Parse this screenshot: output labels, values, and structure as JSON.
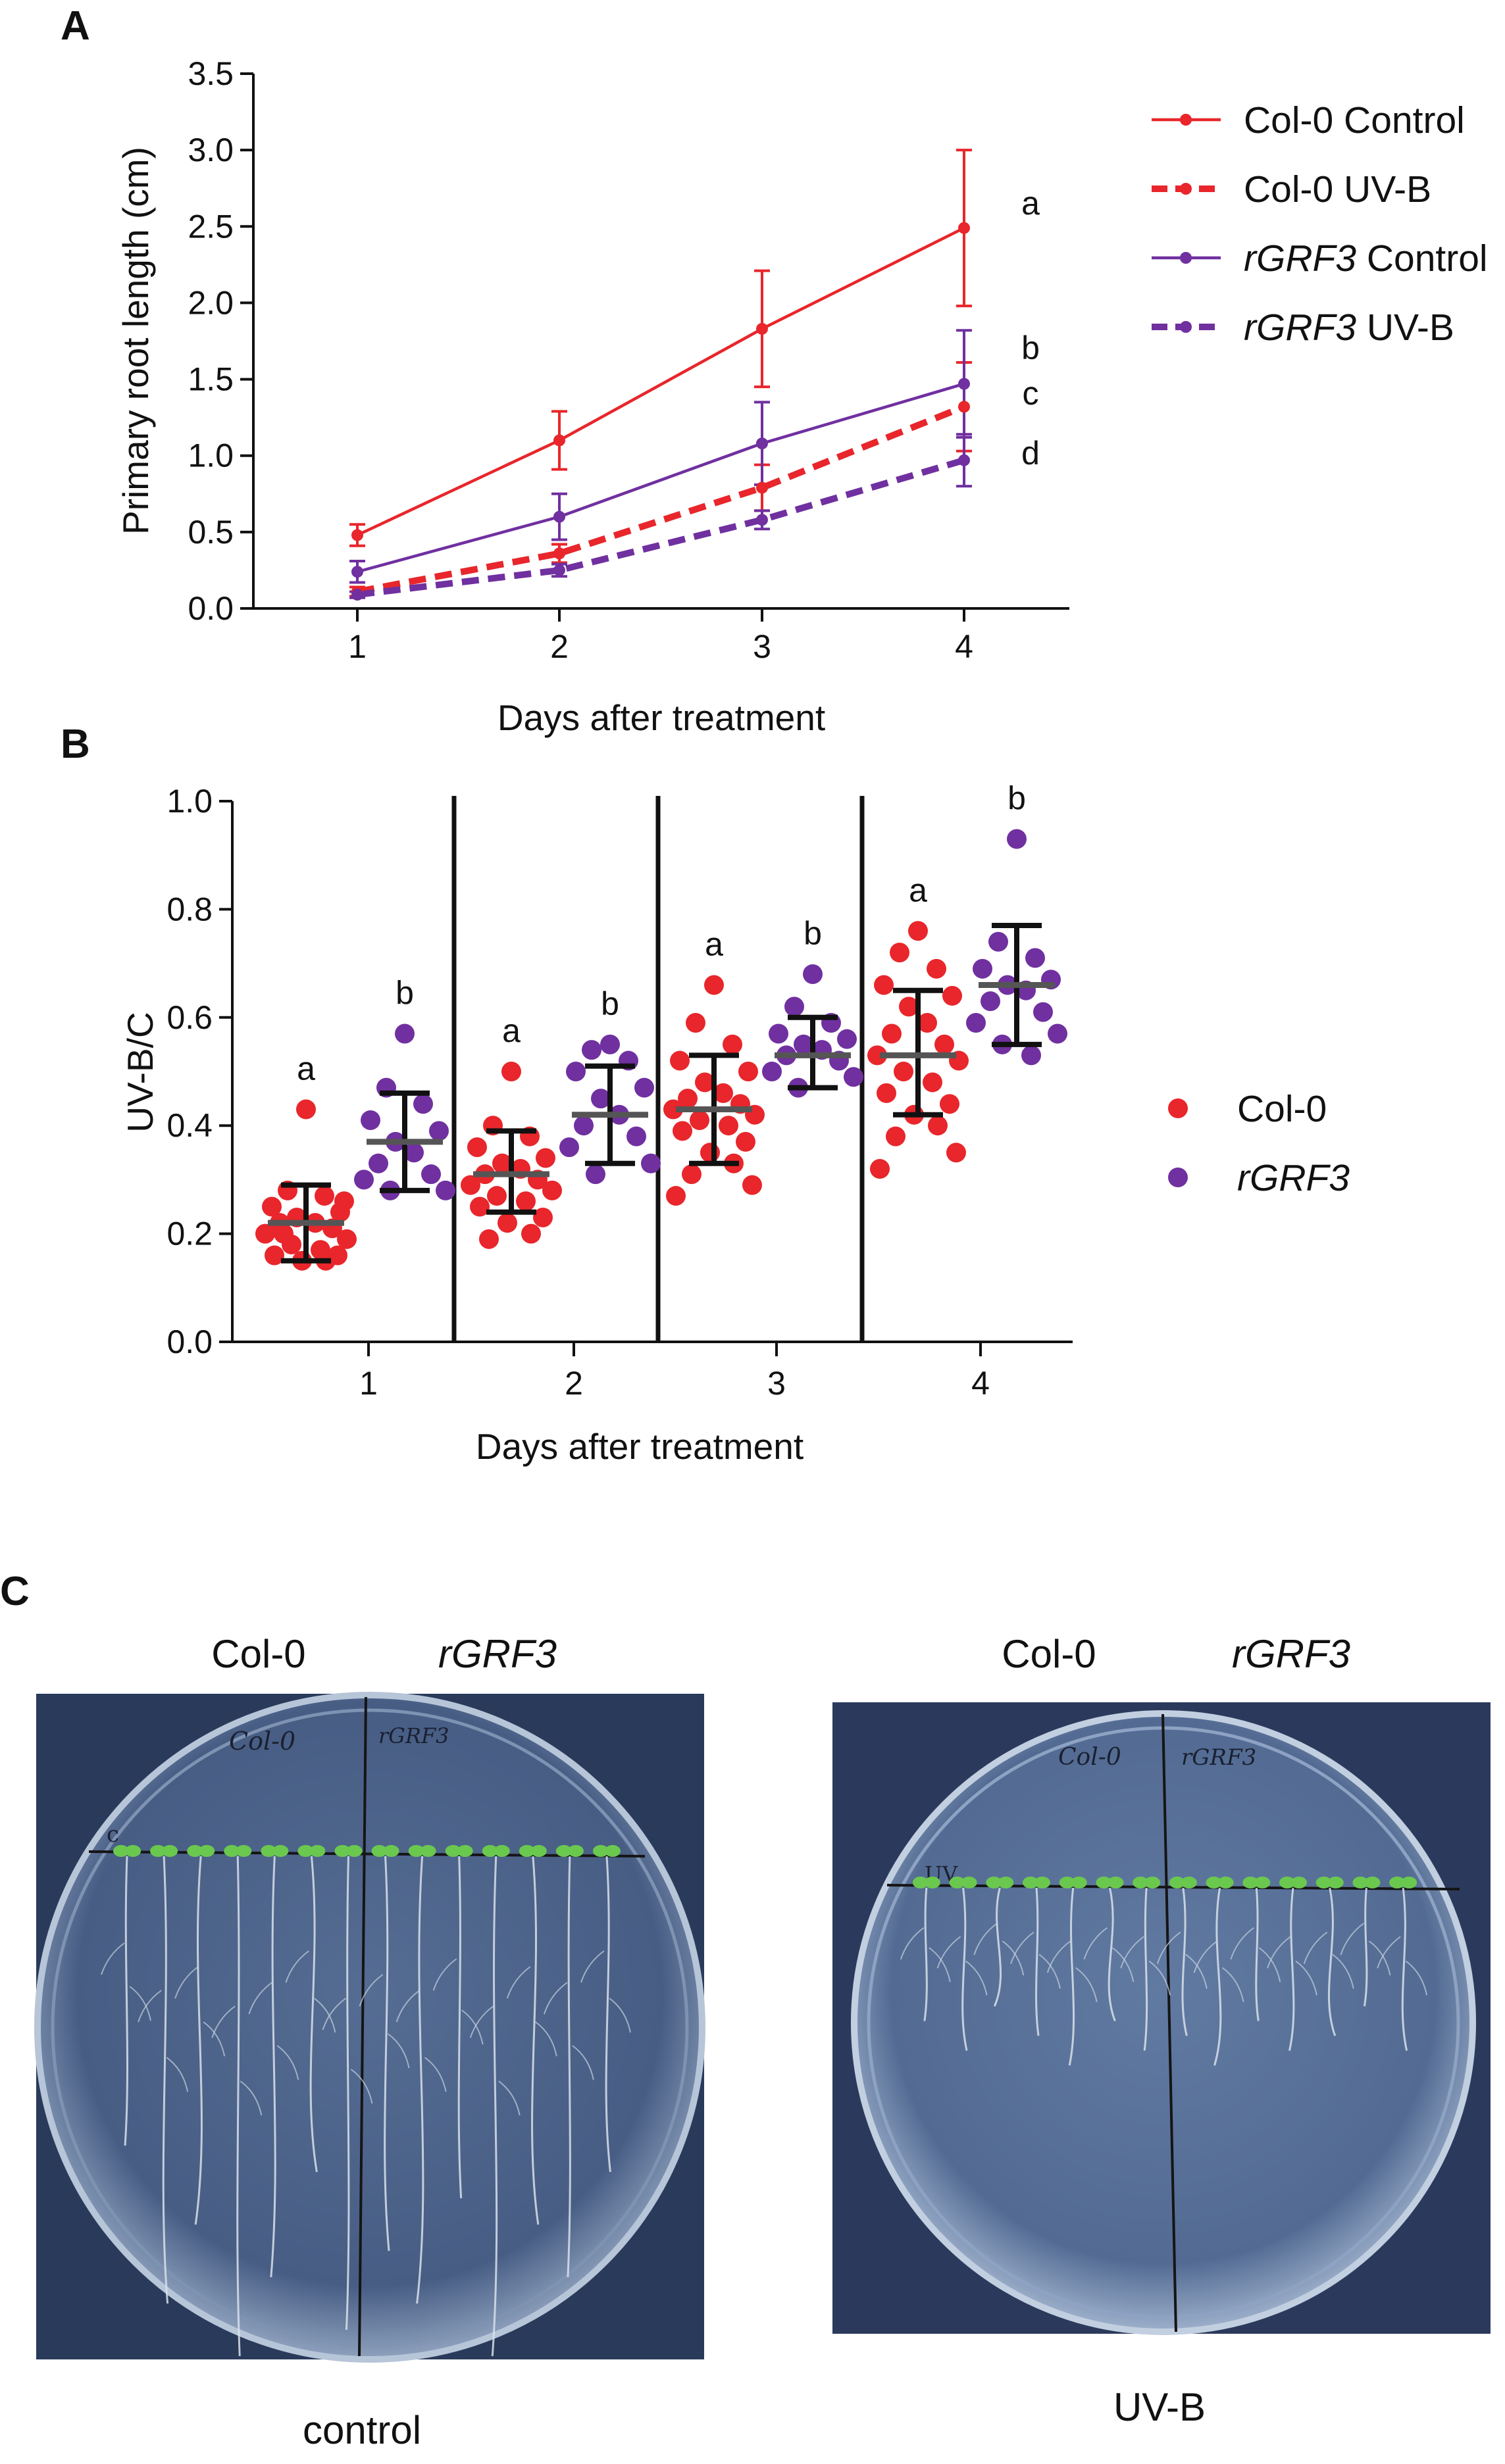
{
  "panels": {
    "a": {
      "label": "A"
    },
    "b": {
      "label": "B"
    },
    "c": {
      "label": "C"
    }
  },
  "chart_data": [
    {
      "type": "line",
      "panel": "A",
      "xlabel": "Days after treatment",
      "ylabel": "Primary root length (cm)",
      "x": [
        1,
        2,
        3,
        4
      ],
      "xticks": [
        "1",
        "2",
        "3",
        "4"
      ],
      "ylim": [
        0,
        3.5
      ],
      "yticks": [
        "0.0",
        "0.5",
        "1.0",
        "1.5",
        "2.0",
        "2.5",
        "3.0",
        "3.5"
      ],
      "series": [
        {
          "name": "Col-0 Control",
          "name_main": "Col-0",
          "name_suffix": "Control",
          "italic_main": false,
          "color": "#e8262b",
          "dashed": false,
          "values": [
            0.48,
            1.1,
            1.83,
            2.49
          ],
          "errors": [
            0.07,
            0.19,
            0.38,
            0.51
          ]
        },
        {
          "name": "Col-0 UV-B",
          "name_main": "Col-0",
          "name_suffix": "UV-B",
          "italic_main": false,
          "color": "#e8262b",
          "dashed": true,
          "values": [
            0.11,
            0.36,
            0.79,
            1.32
          ],
          "errors": [
            0.03,
            0.06,
            0.15,
            0.29
          ]
        },
        {
          "name": "rGRF3 Control",
          "name_main": "rGRF3",
          "name_suffix": "Control",
          "italic_main": true,
          "color": "#7030a0",
          "dashed": false,
          "values": [
            0.24,
            0.6,
            1.08,
            1.47
          ],
          "errors": [
            0.07,
            0.15,
            0.27,
            0.35
          ]
        },
        {
          "name": "rGRF3 UV-B",
          "name_main": "rGRF3",
          "name_suffix": "UV-B",
          "italic_main": true,
          "color": "#7030a0",
          "dashed": true,
          "values": [
            0.09,
            0.25,
            0.58,
            0.97
          ],
          "errors": [
            0.02,
            0.04,
            0.06,
            0.17
          ]
        }
      ],
      "significance_letters": [
        {
          "series": "Col-0 Control",
          "letter": "a"
        },
        {
          "series": "rGRF3 Control",
          "letter": "b"
        },
        {
          "series": "Col-0 UV-B",
          "letter": "c"
        },
        {
          "series": "rGRF3 UV-B",
          "letter": "d"
        }
      ]
    },
    {
      "type": "scatter",
      "panel": "B",
      "xlabel": "Days after treatment",
      "ylabel": "UV-B/C",
      "categories": [
        "1",
        "2",
        "3",
        "4"
      ],
      "ylim": [
        0,
        1.0
      ],
      "yticks": [
        "0.0",
        "0.2",
        "0.4",
        "0.6",
        "0.8",
        "1.0"
      ],
      "groups": [
        {
          "name": "Col-0",
          "italic": false,
          "color": "#e8262b"
        },
        {
          "name": "rGRF3",
          "italic": true,
          "color": "#7030a0"
        }
      ],
      "series": [
        {
          "day": "1",
          "group": "Col-0",
          "mean": 0.22,
          "sd_low": 0.15,
          "sd_high": 0.29,
          "letter": "a",
          "points": [
            0.43,
            0.28,
            0.27,
            0.25,
            0.24,
            0.23,
            0.22,
            0.22,
            0.21,
            0.2,
            0.19,
            0.18,
            0.17,
            0.16,
            0.16,
            0.15,
            0.15,
            0.2,
            0.26
          ]
        },
        {
          "day": "1",
          "group": "rGRF3",
          "mean": 0.37,
          "sd_low": 0.28,
          "sd_high": 0.46,
          "letter": "b",
          "points": [
            0.57,
            0.47,
            0.44,
            0.41,
            0.39,
            0.37,
            0.35,
            0.33,
            0.31,
            0.3,
            0.28,
            0.28
          ]
        },
        {
          "day": "2",
          "group": "Col-0",
          "mean": 0.31,
          "sd_low": 0.24,
          "sd_high": 0.39,
          "letter": "a",
          "points": [
            0.5,
            0.4,
            0.38,
            0.36,
            0.34,
            0.33,
            0.32,
            0.31,
            0.3,
            0.29,
            0.28,
            0.27,
            0.26,
            0.25,
            0.23,
            0.22,
            0.2,
            0.19
          ]
        },
        {
          "day": "2",
          "group": "rGRF3",
          "mean": 0.42,
          "sd_low": 0.33,
          "sd_high": 0.51,
          "letter": "b",
          "points": [
            0.55,
            0.54,
            0.52,
            0.5,
            0.47,
            0.45,
            0.42,
            0.4,
            0.38,
            0.36,
            0.33,
            0.31
          ]
        },
        {
          "day": "3",
          "group": "Col-0",
          "mean": 0.43,
          "sd_low": 0.33,
          "sd_high": 0.53,
          "letter": "a",
          "points": [
            0.66,
            0.59,
            0.55,
            0.52,
            0.5,
            0.48,
            0.46,
            0.45,
            0.44,
            0.43,
            0.42,
            0.41,
            0.4,
            0.39,
            0.37,
            0.35,
            0.33,
            0.31,
            0.29,
            0.27
          ]
        },
        {
          "day": "3",
          "group": "rGRF3",
          "mean": 0.53,
          "sd_low": 0.47,
          "sd_high": 0.6,
          "letter": "b",
          "points": [
            0.68,
            0.62,
            0.59,
            0.57,
            0.56,
            0.55,
            0.54,
            0.53,
            0.52,
            0.5,
            0.49,
            0.47
          ]
        },
        {
          "day": "4",
          "group": "Col-0",
          "mean": 0.53,
          "sd_low": 0.42,
          "sd_high": 0.65,
          "letter": "a",
          "points": [
            0.76,
            0.72,
            0.69,
            0.66,
            0.64,
            0.62,
            0.59,
            0.57,
            0.55,
            0.53,
            0.52,
            0.5,
            0.48,
            0.46,
            0.44,
            0.42,
            0.4,
            0.38,
            0.35,
            0.32
          ]
        },
        {
          "day": "4",
          "group": "rGRF3",
          "mean": 0.66,
          "sd_low": 0.55,
          "sd_high": 0.77,
          "letter": "b",
          "points": [
            0.93,
            0.74,
            0.71,
            0.69,
            0.67,
            0.66,
            0.65,
            0.63,
            0.61,
            0.59,
            0.57,
            0.55,
            0.53
          ]
        }
      ]
    }
  ],
  "photos": {
    "left": {
      "col_labels": [
        "Col-0",
        "rGRF3"
      ],
      "col_italic": [
        false,
        true
      ],
      "plate_writing": [
        "Col-0",
        "rGRF3",
        "c"
      ],
      "caption": "control",
      "root_lengths": [
        0.55,
        0.85,
        0.7,
        0.95,
        0.8,
        0.6,
        0.9,
        0.75,
        0.85,
        0.65,
        0.95,
        0.7,
        0.8,
        0.6
      ],
      "colors": {
        "background": "#2a3a5a",
        "plate": "#5f7597",
        "agar": "#4c6289",
        "leaf": "#6bc84f"
      }
    },
    "right": {
      "col_labels": [
        "Col-0",
        "rGRF3"
      ],
      "col_italic": [
        false,
        true
      ],
      "plate_writing": [
        "Col-0",
        "rGRF3",
        "UV"
      ],
      "caption": "UV-B",
      "root_lengths": [
        0.45,
        0.55,
        0.4,
        0.5,
        0.6,
        0.45,
        0.55,
        0.5,
        0.6,
        0.45,
        0.55,
        0.5,
        0.4,
        0.55
      ],
      "colors": {
        "background": "#2b3a5c",
        "plate": "#6b83a8",
        "agar": "#5a7299",
        "leaf": "#6bc84f"
      }
    }
  }
}
